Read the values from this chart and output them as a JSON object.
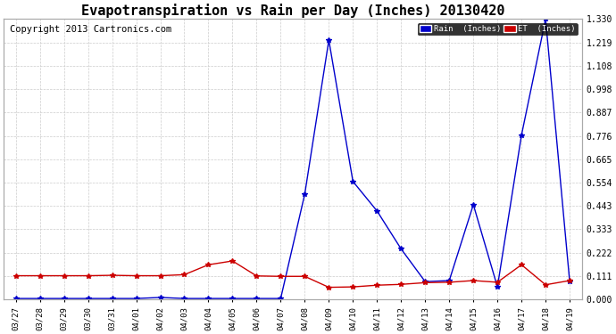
{
  "title": "Evapotranspiration vs Rain per Day (Inches) 20130420",
  "copyright": "Copyright 2013 Cartronics.com",
  "x_labels": [
    "03/27",
    "03/28",
    "03/29",
    "03/30",
    "03/31",
    "04/01",
    "04/02",
    "04/03",
    "04/04",
    "04/05",
    "04/06",
    "04/07",
    "04/08",
    "04/09",
    "04/10",
    "04/11",
    "04/12",
    "04/13",
    "04/14",
    "04/15",
    "04/16",
    "04/17",
    "04/18",
    "04/19"
  ],
  "rain_inches": [
    0.005,
    0.005,
    0.005,
    0.005,
    0.005,
    0.005,
    0.01,
    0.005,
    0.005,
    0.005,
    0.005,
    0.005,
    0.5,
    1.23,
    0.56,
    0.42,
    0.24,
    0.085,
    0.09,
    0.45,
    0.06,
    0.78,
    1.33,
    0.085
  ],
  "et_inches": [
    0.113,
    0.113,
    0.113,
    0.113,
    0.115,
    0.113,
    0.113,
    0.118,
    0.165,
    0.183,
    0.112,
    0.11,
    0.11,
    0.058,
    0.06,
    0.068,
    0.072,
    0.08,
    0.082,
    0.09,
    0.082,
    0.165,
    0.07,
    0.09
  ],
  "rain_color": "#0000cc",
  "et_color": "#cc0000",
  "background_color": "#ffffff",
  "grid_color": "#cccccc",
  "ylim": [
    0.0,
    1.33
  ],
  "yticks": [
    0.0,
    0.111,
    0.222,
    0.333,
    0.443,
    0.554,
    0.665,
    0.776,
    0.887,
    0.998,
    1.108,
    1.219,
    1.33
  ],
  "legend_rain_bg": "#0000cc",
  "legend_et_bg": "#cc0000",
  "title_fontsize": 11,
  "copyright_fontsize": 7.5
}
